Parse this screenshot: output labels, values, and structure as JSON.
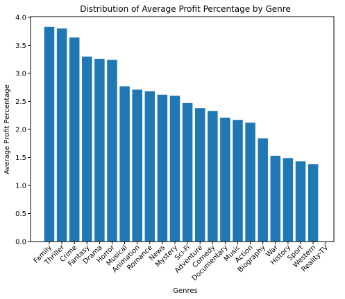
{
  "chart_data": {
    "type": "bar",
    "title": "Distribution of Average Profit Percentage by Genre",
    "xlabel": "Genres",
    "ylabel": "Average Profit Percentage",
    "categories": [
      "Family",
      "Thriller",
      "Crime",
      "Fantasy",
      "Drama",
      "Horror",
      "Musical",
      "Animation",
      "Romance",
      "News",
      "Mystery",
      "Sci-Fi",
      "Adventure",
      "Comedy",
      "Documentary",
      "Music",
      "Action",
      "Biography",
      "War",
      "History",
      "Sport",
      "Western",
      "Reality-TV"
    ],
    "values": [
      3.83,
      3.8,
      3.64,
      3.3,
      3.26,
      3.24,
      2.77,
      2.71,
      2.68,
      2.62,
      2.6,
      2.47,
      2.38,
      2.33,
      2.21,
      2.17,
      2.12,
      1.84,
      1.53,
      1.49,
      1.43,
      1.38,
      0.0
    ],
    "ylim": [
      0,
      4.0
    ],
    "yticks": [
      0.0,
      0.5,
      1.0,
      1.5,
      2.0,
      2.5,
      3.0,
      3.5,
      4.0
    ],
    "ytick_labels": [
      "0.0",
      "0.5",
      "1.0",
      "1.5",
      "2.0",
      "2.5",
      "3.0",
      "3.5",
      "4.0"
    ],
    "bar_color": "#1f77b4",
    "grid": false,
    "legend": "none"
  }
}
